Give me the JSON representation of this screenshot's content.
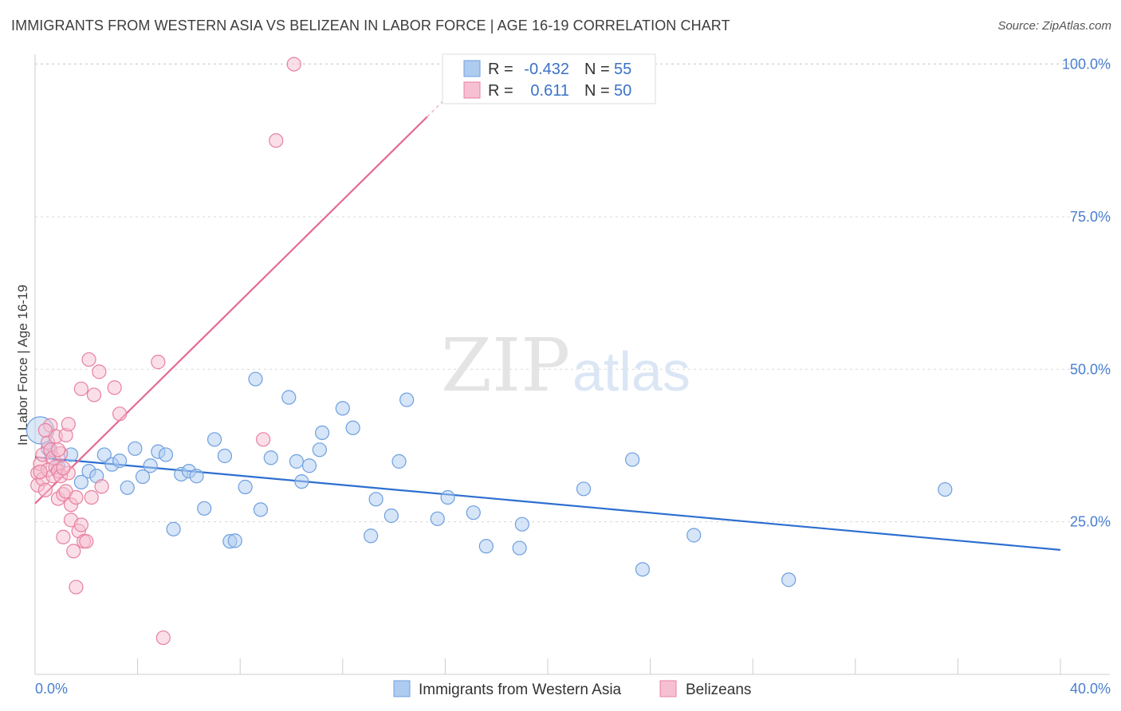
{
  "title": "IMMIGRANTS FROM WESTERN ASIA VS BELIZEAN IN LABOR FORCE | AGE 16-19 CORRELATION CHART",
  "source": "Source: ZipAtlas.com",
  "watermark": {
    "zip": "ZIP",
    "atlas": "atlas"
  },
  "colors": {
    "blue_fill": "#aecbf0",
    "blue_stroke": "#6e9fe0",
    "blue_line": "#2d6fd0",
    "pink_fill": "#f6c0d2",
    "pink_stroke": "#e8809f",
    "pink_line": "#e46b93",
    "tick_text": "#4a7fd0",
    "grid": "#d8d8d8"
  },
  "legend": {
    "row1": {
      "r_label": "R =",
      "r_value": "-0.432",
      "n_label": "N =",
      "n_value": "55"
    },
    "row2": {
      "r_label": "R =",
      "r_value": "0.611",
      "n_label": "N =",
      "n_value": "50"
    }
  },
  "chart_data": {
    "type": "scatter",
    "title": "IMMIGRANTS FROM WESTERN ASIA VS BELIZEAN IN LABOR FORCE | AGE 16-19 CORRELATION CHART",
    "xlabel": "",
    "ylabel": "In Labor Force | Age 16-19",
    "xlim": [
      0,
      40
    ],
    "ylim": [
      0,
      105
    ],
    "x_tick_labels": [
      "0.0%",
      "40.0%"
    ],
    "y_ticks": [
      25,
      50,
      75,
      100
    ],
    "y_tick_labels": [
      "25.0%",
      "50.0%",
      "75.0%",
      "100.0%"
    ],
    "grid": true,
    "legend_position": "bottom-center",
    "series": [
      {
        "name": "Immigrants from Western Asia",
        "color": "blue",
        "r": -0.432,
        "n": 55,
        "trend": {
          "x": [
            0,
            40
          ],
          "y": [
            35.6,
            20.4
          ]
        },
        "points": [
          [
            0.2,
            40.0
          ],
          [
            0.6,
            36.5
          ],
          [
            0.9,
            34.0
          ],
          [
            1.4,
            36.0
          ],
          [
            1.8,
            31.5
          ],
          [
            2.1,
            33.3
          ],
          [
            2.4,
            32.5
          ],
          [
            2.7,
            36.0
          ],
          [
            3.0,
            34.4
          ],
          [
            3.3,
            35.0
          ],
          [
            3.6,
            30.6
          ],
          [
            3.9,
            37.0
          ],
          [
            4.2,
            32.4
          ],
          [
            4.5,
            34.2
          ],
          [
            4.8,
            36.5
          ],
          [
            5.1,
            36.0
          ],
          [
            5.4,
            23.8
          ],
          [
            5.7,
            32.8
          ],
          [
            6.0,
            33.3
          ],
          [
            6.3,
            32.5
          ],
          [
            6.6,
            27.2
          ],
          [
            7.0,
            38.5
          ],
          [
            7.4,
            35.8
          ],
          [
            7.6,
            21.8
          ],
          [
            7.8,
            21.9
          ],
          [
            8.2,
            30.7
          ],
          [
            8.6,
            48.4
          ],
          [
            8.8,
            27.0
          ],
          [
            9.2,
            35.5
          ],
          [
            9.9,
            45.4
          ],
          [
            10.2,
            34.9
          ],
          [
            10.4,
            31.6
          ],
          [
            10.7,
            34.2
          ],
          [
            11.1,
            36.8
          ],
          [
            11.2,
            39.6
          ],
          [
            12.0,
            43.6
          ],
          [
            12.4,
            40.4
          ],
          [
            13.1,
            22.7
          ],
          [
            13.3,
            28.7
          ],
          [
            13.9,
            26.0
          ],
          [
            14.2,
            34.9
          ],
          [
            14.5,
            45.0
          ],
          [
            15.7,
            25.5
          ],
          [
            16.1,
            29.0
          ],
          [
            17.1,
            26.5
          ],
          [
            17.6,
            21.0
          ],
          [
            18.9,
            20.7
          ],
          [
            19.0,
            24.6
          ],
          [
            21.4,
            30.4
          ],
          [
            23.3,
            35.2
          ],
          [
            23.7,
            17.2
          ],
          [
            25.7,
            22.8
          ],
          [
            29.4,
            15.5
          ],
          [
            35.5,
            30.3
          ],
          [
            0.5,
            37.0
          ]
        ]
      },
      {
        "name": "Belizeans",
        "color": "pink",
        "r": 0.611,
        "n": 50,
        "trend": {
          "x": [
            0,
            15.3
          ],
          "y": [
            28.0,
            91.4
          ]
        },
        "trend_dashed": {
          "x": [
            15.3,
            17.0
          ],
          "y": [
            91.4,
            98.5
          ]
        },
        "points": [
          [
            0.1,
            33.0
          ],
          [
            0.1,
            31.0
          ],
          [
            0.2,
            34.5
          ],
          [
            0.3,
            32.0
          ],
          [
            0.3,
            36.0
          ],
          [
            0.4,
            30.2
          ],
          [
            0.5,
            38.0
          ],
          [
            0.5,
            33.5
          ],
          [
            0.6,
            40.8
          ],
          [
            0.6,
            36.8
          ],
          [
            0.7,
            35.5
          ],
          [
            0.7,
            32.5
          ],
          [
            0.8,
            39.0
          ],
          [
            0.8,
            34.0
          ],
          [
            0.9,
            33.3
          ],
          [
            0.9,
            28.8
          ],
          [
            1.0,
            36.2
          ],
          [
            1.0,
            32.5
          ],
          [
            1.1,
            29.5
          ],
          [
            1.1,
            22.5
          ],
          [
            1.2,
            39.2
          ],
          [
            1.2,
            30.0
          ],
          [
            1.3,
            33.0
          ],
          [
            1.3,
            41.0
          ],
          [
            1.4,
            25.3
          ],
          [
            1.4,
            27.8
          ],
          [
            1.5,
            20.2
          ],
          [
            1.6,
            29.0
          ],
          [
            1.6,
            14.3
          ],
          [
            1.7,
            23.5
          ],
          [
            1.8,
            24.5
          ],
          [
            1.8,
            46.8
          ],
          [
            1.9,
            21.8
          ],
          [
            2.0,
            21.8
          ],
          [
            2.1,
            51.6
          ],
          [
            2.2,
            29.0
          ],
          [
            2.3,
            45.8
          ],
          [
            2.5,
            49.6
          ],
          [
            2.6,
            30.8
          ],
          [
            3.1,
            47.0
          ],
          [
            3.3,
            42.7
          ],
          [
            4.8,
            51.2
          ],
          [
            5.0,
            6.0
          ],
          [
            8.9,
            38.5
          ],
          [
            9.4,
            87.5
          ],
          [
            10.1,
            100.0
          ],
          [
            0.4,
            40.0
          ],
          [
            0.2,
            33.2
          ],
          [
            0.9,
            36.8
          ],
          [
            1.1,
            33.8
          ]
        ]
      }
    ]
  }
}
